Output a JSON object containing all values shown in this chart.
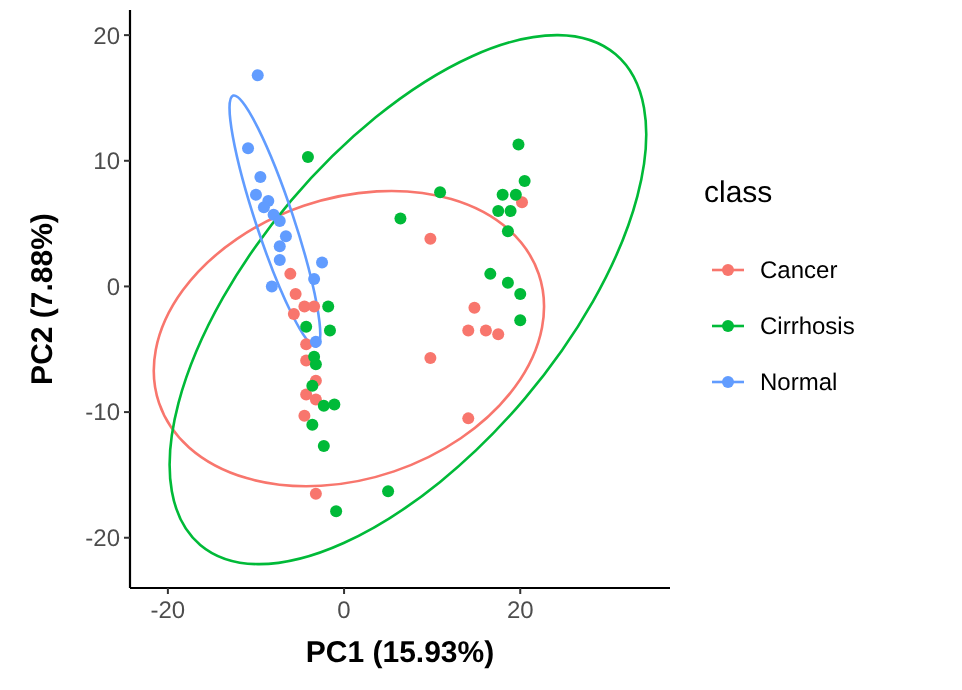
{
  "chart_data": {
    "type": "scatter",
    "xlabel": "PC1 (15.93%)",
    "ylabel": "PC2 (7.88%)",
    "legend_title": "class",
    "legend": "right",
    "grid": false,
    "marker": "circle",
    "xlim": [
      -24.3,
      37
    ],
    "ylim": [
      -24,
      22
    ],
    "xticks": [
      -20,
      0,
      20
    ],
    "yticks": [
      -20,
      -10,
      0,
      10,
      20
    ],
    "series": [
      {
        "name": "Cancer",
        "color": "#f8766d",
        "x": [
          -6.1,
          -5.5,
          -4.5,
          -3.4,
          -5.7,
          -4.3,
          -4.3,
          -3.2,
          -4.3,
          -3.2,
          -4.5,
          -3.2,
          9.8,
          14.8,
          14.1,
          16.1,
          17.5,
          9.8,
          14.1,
          20.2
        ],
        "values": [
          1.0,
          -0.6,
          -1.6,
          -1.6,
          -2.2,
          -4.6,
          -5.9,
          -7.5,
          -8.6,
          -9.0,
          -10.3,
          -16.5,
          3.8,
          -1.7,
          -3.5,
          -3.5,
          -3.8,
          -5.7,
          -10.5,
          6.7
        ]
      },
      {
        "name": "Cirrhosis",
        "color": "#00ba38",
        "x": [
          -4.1,
          6.4,
          -1.8,
          -4.3,
          -1.6,
          -3.4,
          -3.2,
          -3.6,
          -2.3,
          -1.1,
          -3.6,
          -2.3,
          5.0,
          -0.9,
          10.9,
          19.8,
          20.5,
          18.0,
          19.5,
          17.5,
          18.9,
          18.6,
          16.6,
          18.6,
          20.0,
          20.0
        ],
        "values": [
          10.3,
          5.4,
          -1.6,
          -3.2,
          -3.5,
          -5.6,
          -6.2,
          -7.9,
          -9.5,
          -9.4,
          -11.0,
          -12.7,
          -16.3,
          -17.9,
          7.5,
          11.3,
          8.4,
          7.3,
          7.3,
          6.0,
          6.0,
          4.4,
          1.0,
          0.3,
          -0.6,
          -2.7
        ]
      },
      {
        "name": "Normal",
        "color": "#619cff",
        "x": [
          -9.8,
          -10.9,
          -9.5,
          -10.0,
          -8.6,
          -9.1,
          -8.0,
          -7.3,
          -6.6,
          -7.3,
          -7.3,
          -8.2,
          -2.5,
          -3.4,
          -3.2
        ],
        "values": [
          16.8,
          11.0,
          8.7,
          7.3,
          6.8,
          6.3,
          5.7,
          5.2,
          4.0,
          3.2,
          2.1,
          0.0,
          1.9,
          0.6,
          -4.4
        ]
      }
    ]
  }
}
